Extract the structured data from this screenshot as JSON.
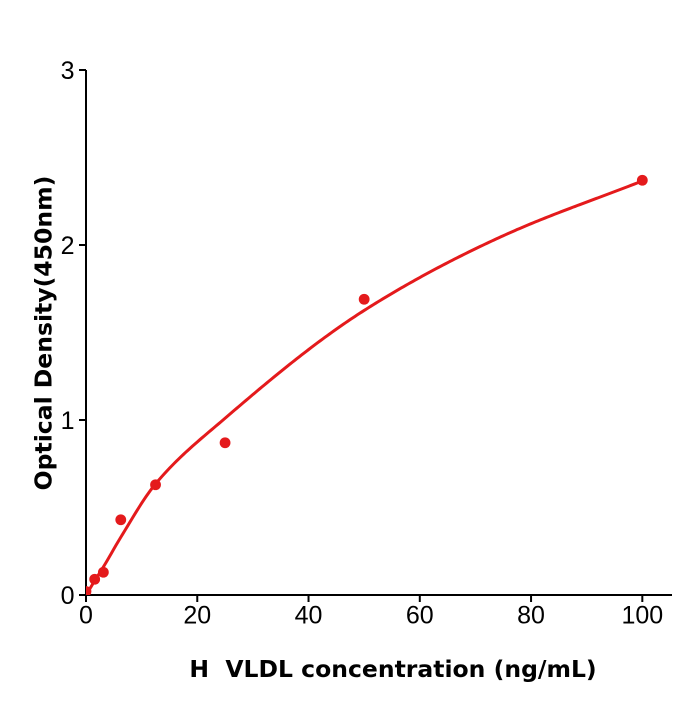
{
  "chart_data": {
    "type": "scatter",
    "title": "",
    "xlabel": "H  VLDL concentration (ng/mL)",
    "ylabel": "Optical Density(450nm)",
    "points": {
      "x": [
        0,
        1.56,
        3.12,
        6.25,
        12.5,
        25,
        50,
        100
      ],
      "od": [
        0.02,
        0.09,
        0.13,
        0.43,
        0.63,
        0.87,
        1.69,
        2.37
      ]
    },
    "fit_curve": {
      "model": "4PL regression line",
      "x": [
        0,
        1.6,
        3.12,
        6.25,
        12.5,
        25,
        50,
        75,
        100
      ],
      "od": [
        0,
        0.083,
        0.16,
        0.33,
        0.635,
        1.01,
        1.626,
        2.053,
        2.366
      ]
    },
    "xticks": [
      0,
      20,
      40,
      60,
      80,
      100
    ],
    "yticks": [
      0,
      1,
      2,
      3
    ],
    "xlim": [
      0,
      105.3
    ],
    "ylim": [
      0,
      3
    ],
    "grid": false,
    "legend": null,
    "colors": {
      "series": "#e41a1c",
      "axis": "#000000",
      "background": "#ffffff"
    }
  }
}
